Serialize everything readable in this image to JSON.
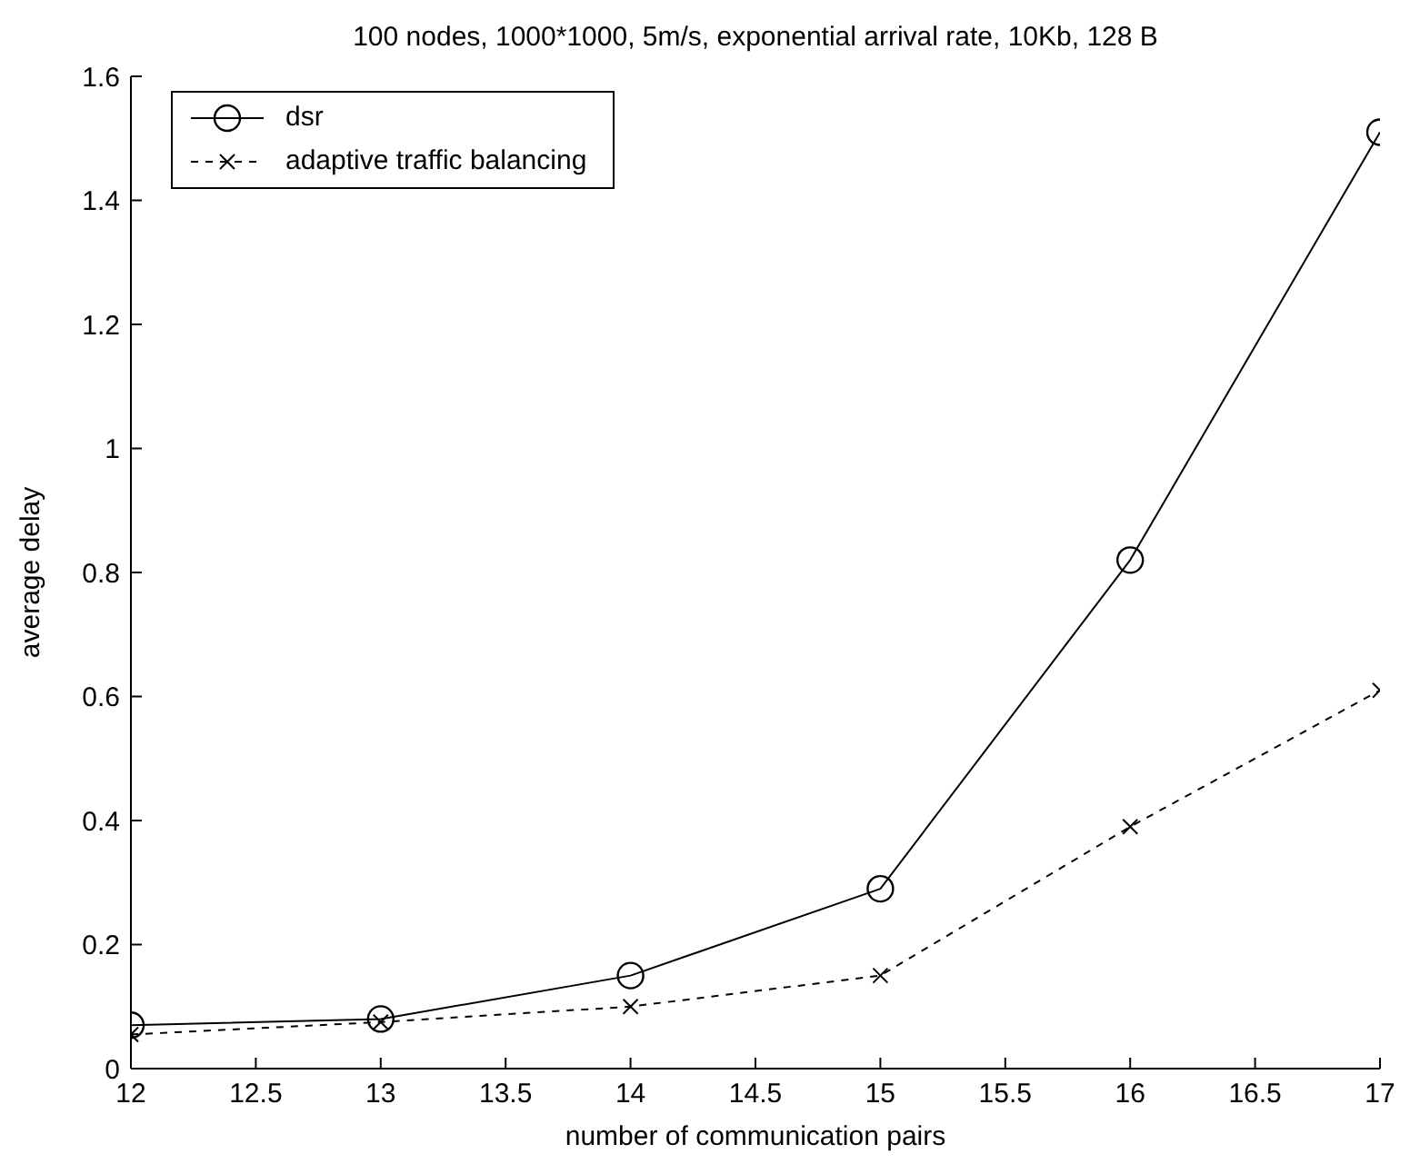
{
  "chart_data": {
    "type": "line",
    "title": "100 nodes, 1000*1000, 5m/s, exponential arrival rate, 10Kb, 128 B",
    "xlabel": "number of communication pairs",
    "ylabel": "average delay",
    "x": [
      12,
      13,
      14,
      15,
      16,
      17
    ],
    "series": [
      {
        "name": "dsr",
        "color": "#000000",
        "values": [
          0.07,
          0.08,
          0.15,
          0.29,
          0.82,
          1.51
        ],
        "marker": "circle",
        "line_style": "solid"
      },
      {
        "name": "adaptive traffic balancing",
        "color": "#000000",
        "values": [
          0.055,
          0.075,
          0.1,
          0.15,
          0.39,
          0.61
        ],
        "marker": "cross",
        "line_style": "dashed"
      }
    ],
    "xlim": [
      12,
      17
    ],
    "xticks": [
      12,
      12.5,
      13,
      13.5,
      14,
      14.5,
      15,
      15.5,
      16,
      16.5,
      17
    ],
    "ylim": [
      0,
      1.6
    ],
    "yticks": [
      0,
      0.2,
      0.4,
      0.6,
      0.8,
      1,
      1.2,
      1.4,
      1.6
    ],
    "grid": false,
    "legend": "top left"
  }
}
